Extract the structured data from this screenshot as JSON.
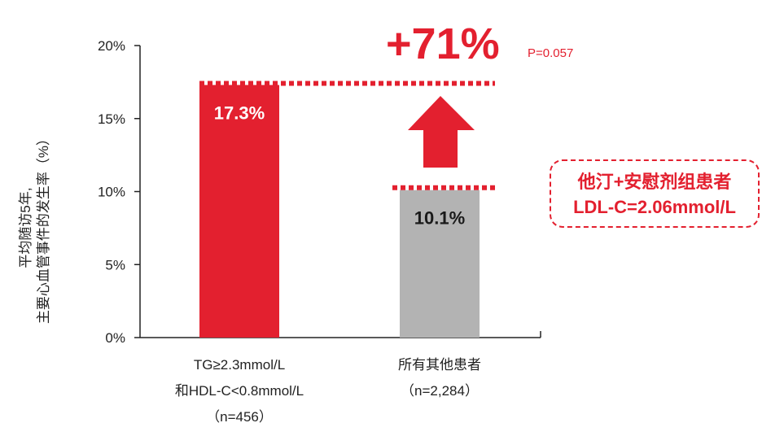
{
  "chart_data": {
    "type": "bar",
    "categories": [
      [
        "TG≥2.3mmol/L",
        "和HDL-C<0.8mmol/L",
        "（n=456）"
      ],
      [
        "所有其他患者",
        "（n=2,284）"
      ]
    ],
    "values": [
      17.3,
      10.1
    ],
    "value_labels": [
      "17.3%",
      "10.1%"
    ],
    "colors": [
      "#e3202f",
      "#b3b3b3"
    ],
    "value_label_colors": [
      "#ffffff",
      "#1a1a1a"
    ],
    "ylabel": [
      "平均随访5年,",
      "主要心血管事件的发生率（%）"
    ],
    "ylim": [
      0,
      20
    ],
    "yticks": [
      0,
      5,
      10,
      15,
      20
    ],
    "ytick_labels": [
      "0%",
      "5%",
      "10%",
      "15%",
      "20%"
    ],
    "grid": false,
    "annotations": {
      "increase": "+71%",
      "p_value": "P=0.057",
      "arrow": "up-arrow",
      "box_lines": [
        "他汀+安慰剂组患者",
        "LDL-C=2.06mmol/L"
      ],
      "accent": "#e3202f"
    }
  }
}
